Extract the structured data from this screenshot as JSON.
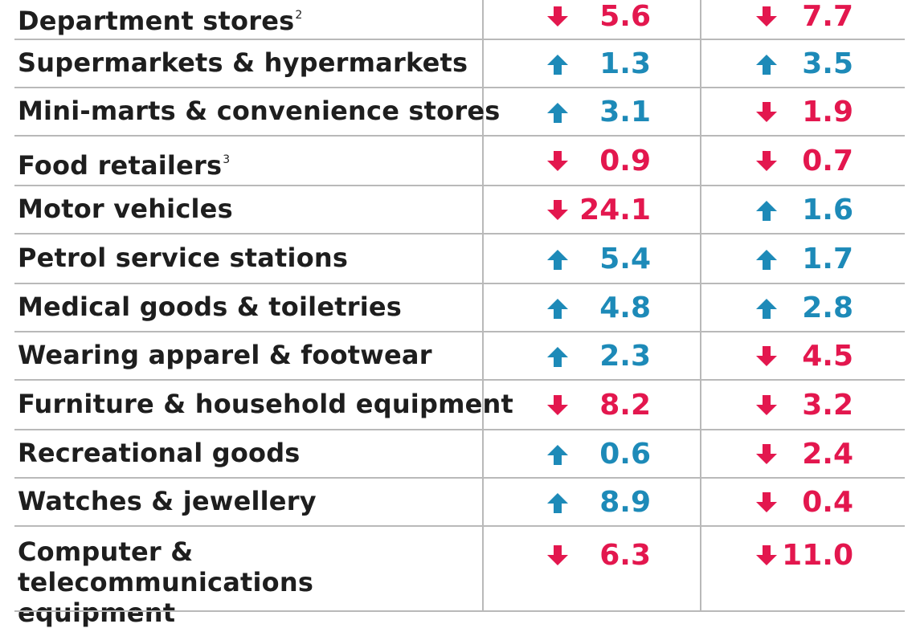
{
  "colors": {
    "up": "#1d8ab8",
    "down": "#e3174e",
    "text": "#1e1e1e",
    "rule": "#b9b9b9"
  },
  "chart_data": {
    "type": "table",
    "rows": [
      {
        "label": "Department stores",
        "sup": "2",
        "col1": {
          "dir": "down",
          "value": "5.6"
        },
        "col2": {
          "dir": "down",
          "value": "7.7"
        }
      },
      {
        "label": "Supermarkets & hypermarkets",
        "sup": "",
        "col1": {
          "dir": "up",
          "value": "1.3"
        },
        "col2": {
          "dir": "up",
          "value": "3.5"
        }
      },
      {
        "label": "Mini-marts & convenience stores",
        "sup": "",
        "col1": {
          "dir": "up",
          "value": "3.1"
        },
        "col2": {
          "dir": "down",
          "value": "1.9"
        }
      },
      {
        "label": "Food retailers",
        "sup": "3",
        "col1": {
          "dir": "down",
          "value": "0.9"
        },
        "col2": {
          "dir": "down",
          "value": "0.7"
        }
      },
      {
        "label": "Motor vehicles",
        "sup": "",
        "col1": {
          "dir": "down",
          "value": "24.1"
        },
        "col2": {
          "dir": "up",
          "value": "1.6"
        }
      },
      {
        "label": "Petrol service stations",
        "sup": "",
        "col1": {
          "dir": "up",
          "value": "5.4"
        },
        "col2": {
          "dir": "up",
          "value": "1.7"
        }
      },
      {
        "label": "Medical goods & toiletries",
        "sup": "",
        "col1": {
          "dir": "up",
          "value": "4.8"
        },
        "col2": {
          "dir": "up",
          "value": "2.8"
        }
      },
      {
        "label": "Wearing apparel & footwear",
        "sup": "",
        "col1": {
          "dir": "up",
          "value": "2.3"
        },
        "col2": {
          "dir": "down",
          "value": "4.5"
        }
      },
      {
        "label": "Furniture & household equipment",
        "sup": "",
        "col1": {
          "dir": "down",
          "value": "8.2"
        },
        "col2": {
          "dir": "down",
          "value": "3.2"
        }
      },
      {
        "label": "Recreational goods",
        "sup": "",
        "col1": {
          "dir": "up",
          "value": "0.6"
        },
        "col2": {
          "dir": "down",
          "value": "2.4"
        }
      },
      {
        "label": "Watches & jewellery",
        "sup": "",
        "col1": {
          "dir": "up",
          "value": "8.9"
        },
        "col2": {
          "dir": "down",
          "value": "0.4"
        }
      },
      {
        "label": "Computer & telecommunications equipment",
        "sup": "",
        "col1": {
          "dir": "down",
          "value": "6.3"
        },
        "col2": {
          "dir": "down",
          "value": "11.0"
        }
      }
    ]
  }
}
